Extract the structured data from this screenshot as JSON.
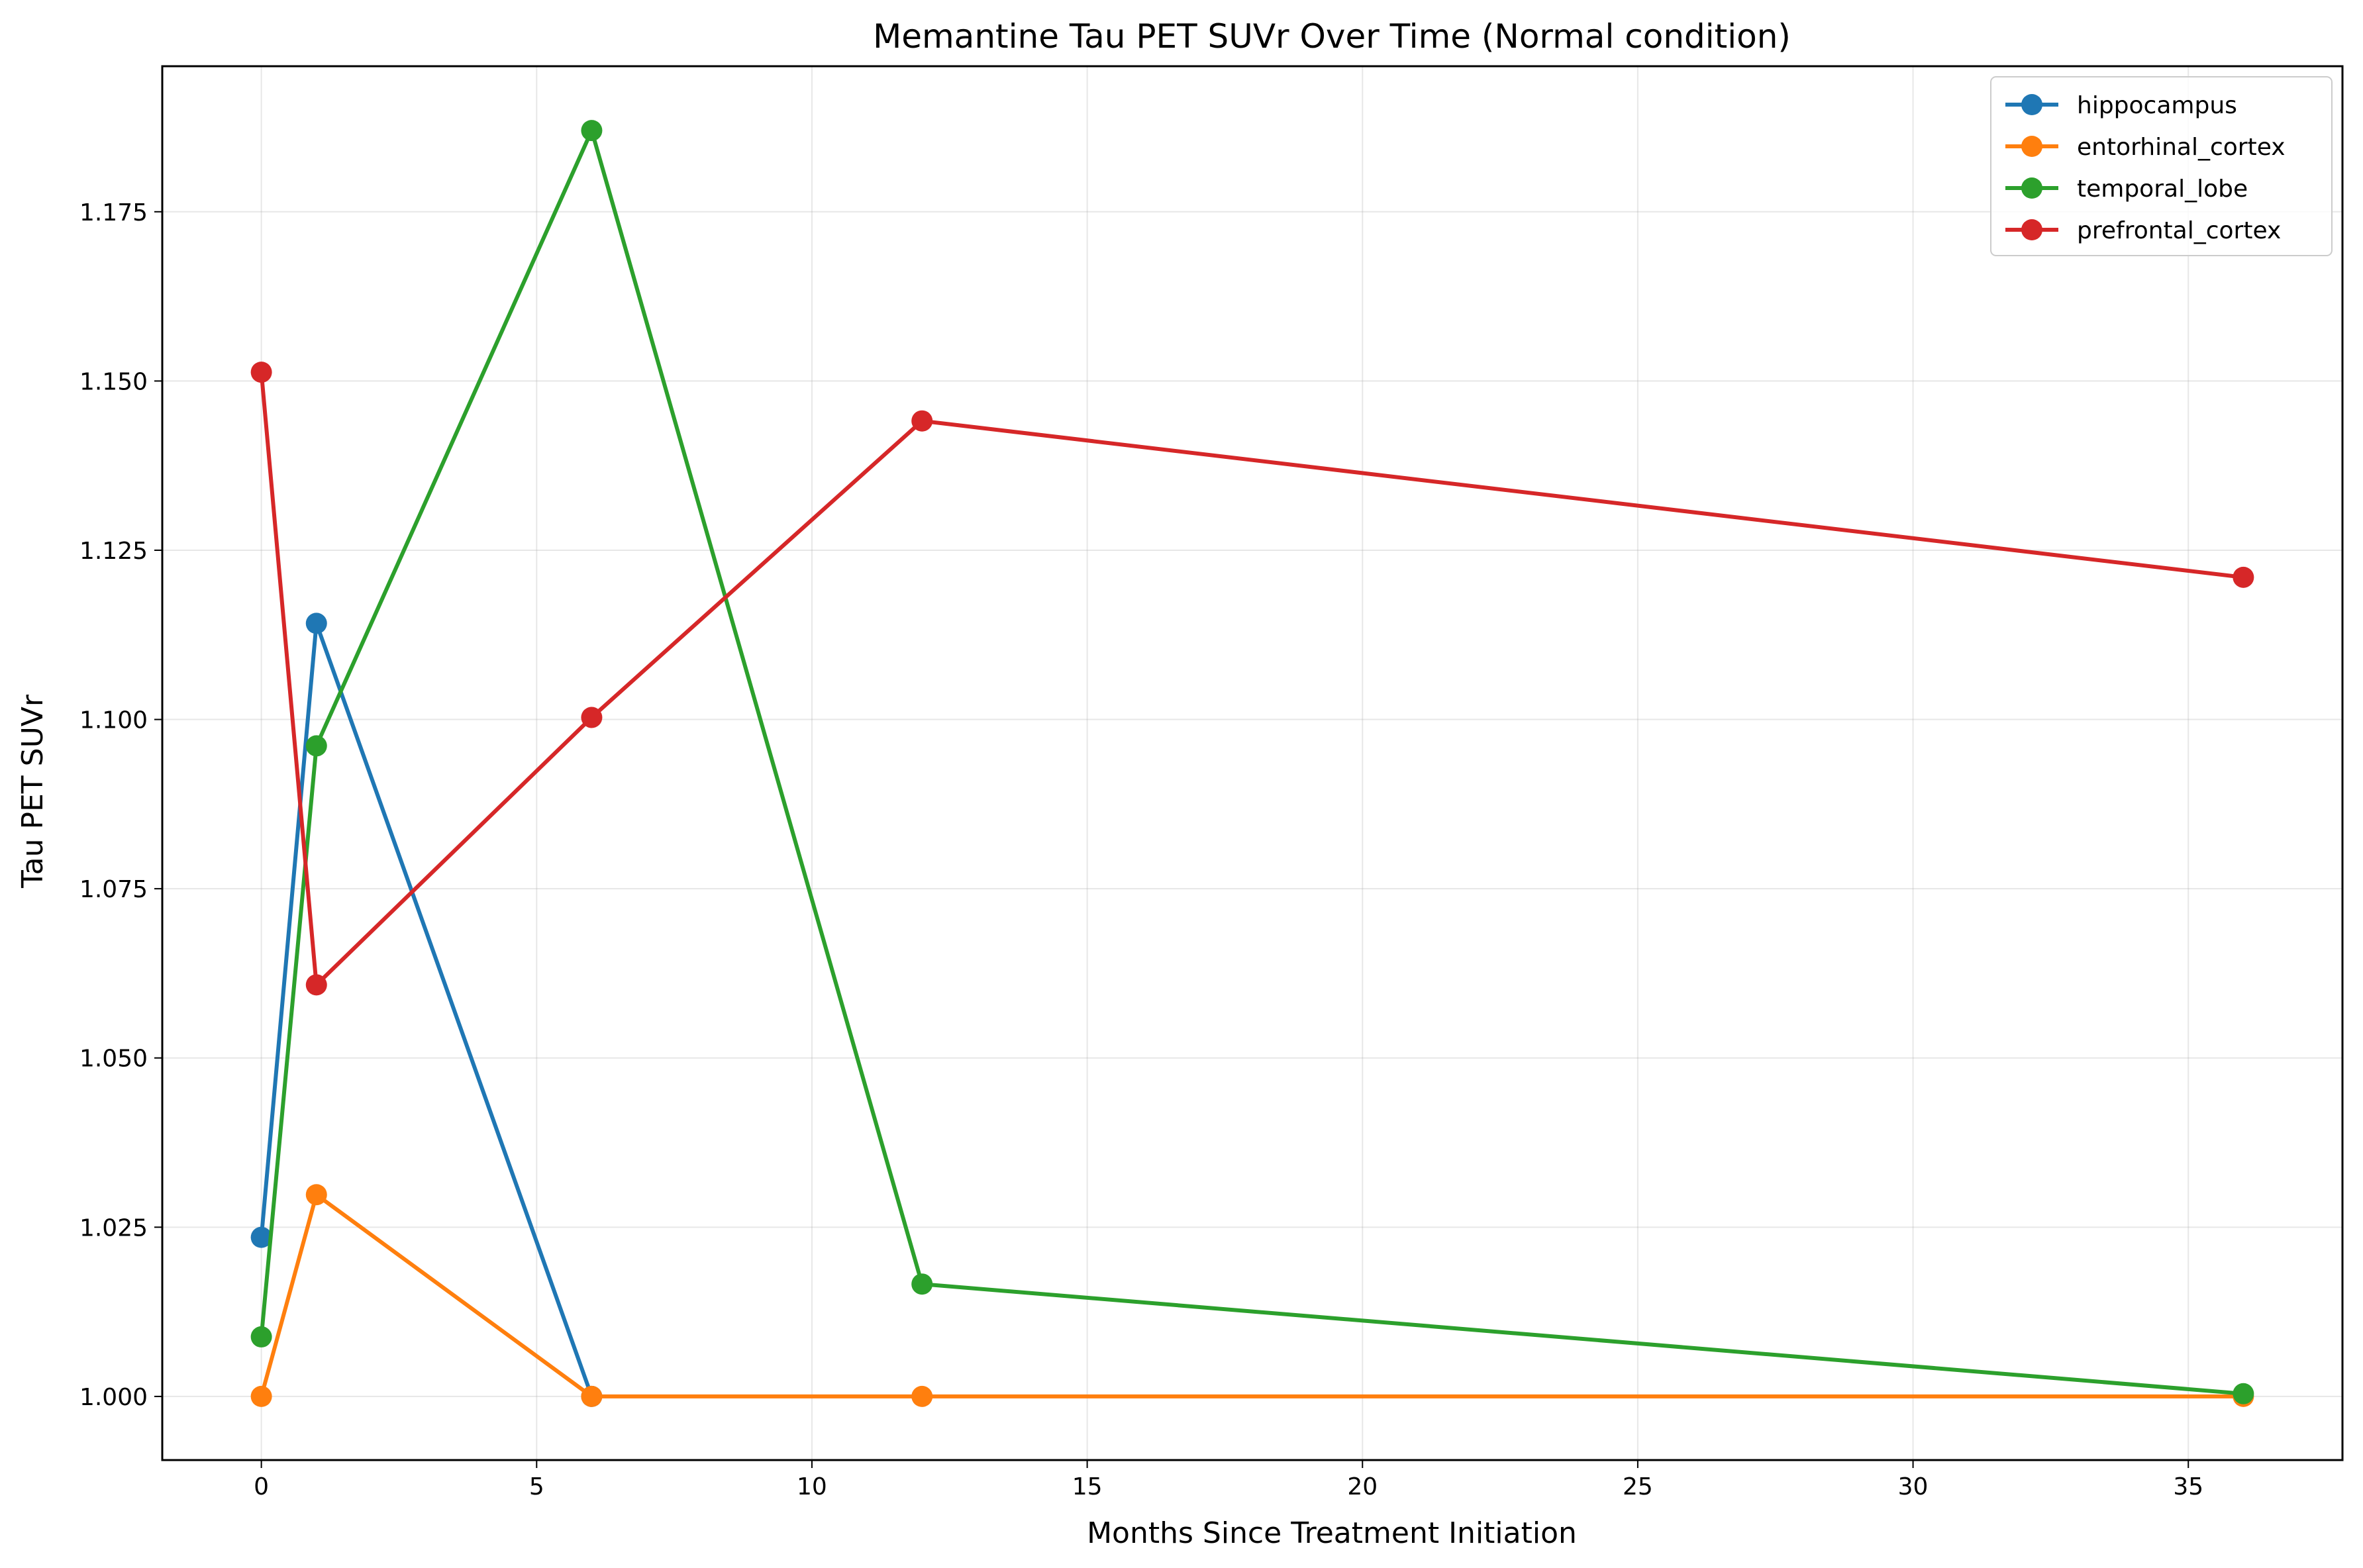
{
  "chart_data": {
    "type": "line",
    "title": "Memantine Tau PET SUVr Over Time (Normal condition)",
    "xlabel": "Months Since Treatment Initiation",
    "ylabel": "Tau PET SUVr",
    "xlim": [
      -1.8,
      37.8
    ],
    "ylim": [
      0.9906,
      1.1965
    ],
    "xticks": [
      0,
      5,
      10,
      15,
      20,
      25,
      30,
      35
    ],
    "yticks": [
      1.0,
      1.025,
      1.05,
      1.075,
      1.1,
      1.125,
      1.15,
      1.175
    ],
    "ytick_labels": [
      "1.000",
      "1.025",
      "1.050",
      "1.075",
      "1.100",
      "1.125",
      "1.150",
      "1.175"
    ],
    "grid": true,
    "legend_position": "top-right",
    "x": [
      0,
      1,
      6,
      12,
      36
    ],
    "series": [
      {
        "name": "hippocampus",
        "color": "#1f77b4",
        "x": [
          0,
          1,
          6
        ],
        "values": [
          1.0235,
          1.1142,
          1.0
        ]
      },
      {
        "name": "entorhinal_cortex",
        "color": "#ff7f0e",
        "x": [
          0,
          1,
          6,
          12,
          36
        ],
        "values": [
          1.0,
          1.0298,
          1.0,
          1.0,
          1.0
        ]
      },
      {
        "name": "temporal_lobe",
        "color": "#2ca02c",
        "x": [
          0,
          1,
          6,
          12,
          36
        ],
        "values": [
          1.0088,
          1.0961,
          1.187,
          1.0166,
          1.0004
        ]
      },
      {
        "name": "prefrontal_cortex",
        "color": "#d62728",
        "x": [
          0,
          1,
          6,
          12,
          36
        ],
        "values": [
          1.1513,
          1.0608,
          1.1003,
          1.1441,
          1.121
        ]
      }
    ]
  }
}
